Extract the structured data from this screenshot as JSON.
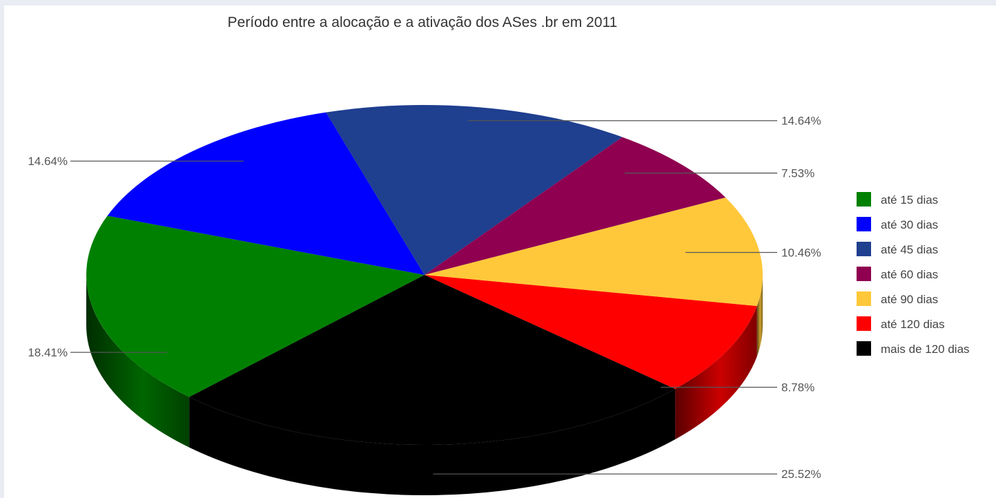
{
  "chart_data": {
    "type": "pie",
    "title": "Período entre a alocação e a ativação dos ASes .br em 2011",
    "categories": [
      "até 15 dias",
      "até 30 dias",
      "até 45 dias",
      "até 60 dias",
      "até 90 dias",
      "até 120 dias",
      "mais de 120 dias"
    ],
    "values": [
      18.41,
      14.64,
      14.64,
      7.53,
      10.46,
      8.78,
      25.52
    ],
    "value_labels": [
      "18.41%",
      "14.64%",
      "14.64%",
      "7.53%",
      "10.46%",
      "8.78%",
      "25.52%"
    ],
    "colors": [
      "#008000",
      "#0000ff",
      "#1f3f8f",
      "#8f0050",
      "#ffc83a",
      "#ff0000",
      "#000000"
    ],
    "legend_position": "right",
    "style": "3d"
  }
}
